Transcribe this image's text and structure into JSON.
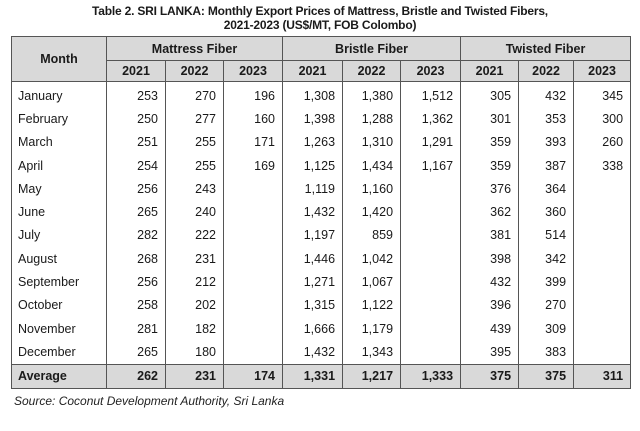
{
  "title_line1": "Table 2. SRI LANKA: Monthly Export Prices of Mattress, Bristle and Twisted Fibers,",
  "title_line2": "2021-2023 (US$/MT, FOB Colombo)",
  "header": {
    "month": "Month",
    "groups": [
      "Mattress Fiber",
      "Bristle Fiber",
      "Twisted Fiber"
    ],
    "years": [
      "2021",
      "2022",
      "2023",
      "2021",
      "2022",
      "2023",
      "2021",
      "2022",
      "2023"
    ]
  },
  "rows": [
    {
      "month": "January",
      "v": [
        "253",
        "270",
        "196",
        "1,308",
        "1,380",
        "1,512",
        "305",
        "432",
        "345"
      ]
    },
    {
      "month": "February",
      "v": [
        "250",
        "277",
        "160",
        "1,398",
        "1,288",
        "1,362",
        "301",
        "353",
        "300"
      ]
    },
    {
      "month": "March",
      "v": [
        "251",
        "255",
        "171",
        "1,263",
        "1,310",
        "1,291",
        "359",
        "393",
        "260"
      ]
    },
    {
      "month": "April",
      "v": [
        "254",
        "255",
        "169",
        "1,125",
        "1,434",
        "1,167",
        "359",
        "387",
        "338"
      ]
    },
    {
      "month": "May",
      "v": [
        "256",
        "243",
        "",
        "1,119",
        "1,160",
        "",
        "376",
        "364",
        ""
      ]
    },
    {
      "month": "June",
      "v": [
        "265",
        "240",
        "",
        "1,432",
        "1,420",
        "",
        "362",
        "360",
        ""
      ]
    },
    {
      "month": "July",
      "v": [
        "282",
        "222",
        "",
        "1,197",
        "859",
        "",
        "381",
        "514",
        ""
      ]
    },
    {
      "month": "August",
      "v": [
        "268",
        "231",
        "",
        "1,446",
        "1,042",
        "",
        "398",
        "342",
        ""
      ]
    },
    {
      "month": "September",
      "v": [
        "256",
        "212",
        "",
        "1,271",
        "1,067",
        "",
        "432",
        "399",
        ""
      ]
    },
    {
      "month": "October",
      "v": [
        "258",
        "202",
        "",
        "1,315",
        "1,122",
        "",
        "396",
        "270",
        ""
      ]
    },
    {
      "month": "November",
      "v": [
        "281",
        "182",
        "",
        "1,666",
        "1,179",
        "",
        "439",
        "309",
        ""
      ]
    },
    {
      "month": "December",
      "v": [
        "265",
        "180",
        "",
        "1,432",
        "1,343",
        "",
        "395",
        "383",
        ""
      ]
    }
  ],
  "average": {
    "label": "Average",
    "v": [
      "262",
      "231",
      "174",
      "1,331",
      "1,217",
      "1,333",
      "375",
      "375",
      "311"
    ]
  },
  "source": "Source: Coconut Development Authority, Sri Lanka"
}
